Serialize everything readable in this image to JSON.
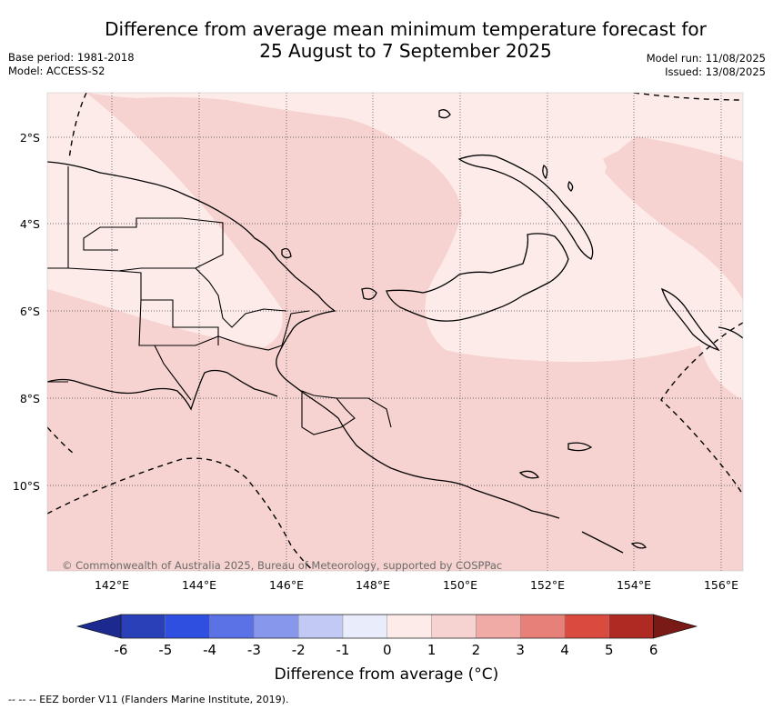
{
  "header": {
    "title_line1": "Difference from average mean minimum temperature forecast for",
    "title_line2": "25 August to 7 September 2025",
    "base_period": "Base period: 1981-2018",
    "model": "Model: ACCESS-S2",
    "model_run": "Model run: 11/08/2025",
    "issued": "Issued: 13/08/2025"
  },
  "map": {
    "region": "Papua New Guinea",
    "lat_labels": [
      "2°S",
      "4°S",
      "6°S",
      "8°S",
      "10°S"
    ],
    "lon_labels": [
      "142°E",
      "144°E",
      "146°E",
      "148°E",
      "150°E",
      "152°E",
      "154°E",
      "156°E"
    ],
    "copyright": "© Commonwealth of Australia 2025, Bureau of Meteorology, supported by COSPPac",
    "anomaly_classes_present": [
      "0 to 1",
      "1 to 2"
    ]
  },
  "colorbar": {
    "ticks": [
      "-6",
      "-5",
      "-4",
      "-3",
      "-2",
      "-1",
      "0",
      "1",
      "2",
      "3",
      "4",
      "5",
      "6"
    ],
    "colors": [
      "#1c2a8f",
      "#2a40b8",
      "#2f4fe0",
      "#5b72e6",
      "#8797ec",
      "#c2c9f4",
      "#e8ecfb",
      "#fdebea",
      "#f6d3d0",
      "#f0aba6",
      "#e8807a",
      "#da4a3e",
      "#ae2a22",
      "#7a1a16"
    ],
    "title": "Difference from average (°C)"
  },
  "footnote": "--  --  -- EEZ border V11 (Flanders Marine Institute, 2019)."
}
